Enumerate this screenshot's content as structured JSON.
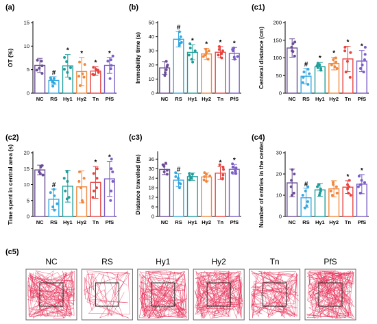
{
  "group_colors": {
    "NC": "#6b4d96",
    "RS": "#36a8e0",
    "Hy1": "#1e9e9a",
    "Hy2": "#f0883e",
    "Tn": "#e8423f",
    "PfS": "#7b5ec6"
  },
  "trace_color": "#e8325a",
  "chart_data": [
    {
      "id": "a",
      "panel_label": "(a)",
      "type": "bar",
      "ylabel": "OT (%)",
      "ylim": [
        0,
        15
      ],
      "yticks": [
        0,
        5,
        10,
        15
      ],
      "yticklabels": [
        "0",
        "5",
        "10",
        "15"
      ],
      "categories": [
        "NC",
        "RS",
        "Hy1",
        "Hy2",
        "Tn",
        "PfS"
      ],
      "values": [
        5.9,
        2.7,
        5.8,
        4.6,
        4.7,
        5.9
      ],
      "errors": [
        1.5,
        0.8,
        2.4,
        3.0,
        0.9,
        1.7
      ],
      "points": [
        [
          6.8,
          4.9,
          5.3,
          5.8,
          7.0,
          4.2
        ],
        [
          2.1,
          1.5,
          2.4,
          3.1,
          2.9,
          3.3
        ],
        [
          4.4,
          6.7,
          5.4,
          7.6,
          3.1,
          5.1
        ],
        [
          1.6,
          6.1,
          4.1,
          3.6,
          6.6,
          3.4
        ],
        [
          4.9,
          5.1,
          4.4,
          3.9,
          5.5,
          4.0
        ],
        [
          5.9,
          3.1,
          7.1,
          7.9,
          5.2,
          6.8
        ]
      ],
      "markers": [
        "",
        "#",
        "*",
        "*",
        "*",
        "*"
      ]
    },
    {
      "id": "b",
      "panel_label": "(b)",
      "type": "bar",
      "ylabel": "Immobility time (s)",
      "ylim": [
        0,
        50
      ],
      "yticks": [
        0,
        10,
        20,
        30,
        40,
        50
      ],
      "yticklabels": [
        "0",
        "10",
        "20",
        "30",
        "40",
        "50"
      ],
      "categories": [
        "NC",
        "RS",
        "Hy1",
        "Hy2",
        "Tn",
        "PfS"
      ],
      "values": [
        17.9,
        38.2,
        28.9,
        27.8,
        29.0,
        28.2
      ],
      "errors": [
        4.5,
        5.5,
        5.3,
        4.0,
        4.0,
        4.2
      ],
      "points": [
        [
          14.5,
          20.0,
          22.5,
          16.5,
          12.5,
          19.0
        ],
        [
          34.0,
          40.0,
          43.5,
          38.0,
          36.0,
          35.5
        ],
        [
          24.0,
          32.0,
          35.0,
          27.0,
          22.0,
          30.0
        ],
        [
          30.0,
          24.0,
          26.0,
          31.0,
          27.0,
          29.0
        ],
        [
          31.0,
          28.0,
          27.0,
          33.0,
          25.0,
          30.0
        ],
        [
          32.0,
          26.0,
          25.5,
          31.0,
          24.0,
          30.0
        ]
      ],
      "markers": [
        "",
        "#",
        "*",
        "*",
        "*",
        "*"
      ]
    },
    {
      "id": "c1",
      "panel_label": "(c1)",
      "type": "bar",
      "ylabel": "Centeral distance (cm)",
      "ylim": [
        0,
        200
      ],
      "yticks": [
        0,
        50,
        100,
        150,
        200
      ],
      "yticklabels": [
        "0",
        "50",
        "100",
        "150",
        "200"
      ],
      "categories": [
        "NC",
        "RS",
        "Hy1",
        "Hy2",
        "Tn",
        "PfS"
      ],
      "values": [
        128,
        48,
        75,
        84,
        97,
        91
      ],
      "errors": [
        26,
        22,
        12,
        18,
        36,
        30
      ],
      "points": [
        [
          105,
          120,
          140,
          130,
          118,
          145
        ],
        [
          30,
          45,
          68,
          55,
          25,
          60
        ],
        [
          65,
          78,
          72,
          80,
          70,
          85
        ],
        [
          70,
          95,
          80,
          88,
          100,
          75
        ],
        [
          60,
          115,
          130,
          90,
          45,
          120
        ],
        [
          60,
          80,
          130,
          110,
          70,
          95
        ]
      ],
      "markers": [
        "",
        "#",
        "*",
        "*",
        "*",
        "*"
      ]
    },
    {
      "id": "c2",
      "panel_label": "(c2)",
      "type": "bar",
      "ylabel": "Time spent in central area (s)",
      "ylim": [
        0,
        20
      ],
      "yticks": [
        0,
        5,
        10,
        15,
        20
      ],
      "yticklabels": [
        "0",
        "5",
        "10",
        "15",
        "20"
      ],
      "categories": [
        "NC",
        "RS",
        "Hy1",
        "Hy2",
        "Tn",
        "PfS"
      ],
      "values": [
        14.6,
        5.4,
        9.5,
        9.3,
        10.7,
        11.8
      ],
      "errors": [
        1.5,
        3.2,
        5.0,
        5.0,
        5.0,
        5.5
      ],
      "points": [
        [
          13.5,
          15.5,
          16.0,
          14.0,
          13.0,
          15.8
        ],
        [
          3.0,
          7.5,
          8.5,
          4.0,
          2.0,
          6.5
        ],
        [
          5.5,
          14.0,
          8.0,
          12.0,
          6.0,
          11.0
        ],
        [
          5.0,
          14.0,
          9.0,
          12.0,
          4.5,
          11.0
        ],
        [
          6.0,
          15.0,
          12.0,
          9.0,
          13.5,
          8.0
        ],
        [
          5.0,
          8.0,
          14.0,
          15.0,
          18.0,
          11.0
        ]
      ],
      "markers": [
        "",
        "#",
        "",
        "",
        "*",
        "*"
      ]
    },
    {
      "id": "c3",
      "panel_label": "(c3)",
      "type": "bar",
      "ylabel": "Distance travelled (m)",
      "ylim": [
        0,
        40
      ],
      "yticks": [
        0,
        6,
        12,
        18,
        24,
        30,
        36
      ],
      "yticklabels": [
        "0",
        "6",
        "12",
        "18",
        "24",
        "30",
        "36"
      ],
      "categories": [
        "NC",
        "RS",
        "Hy1",
        "Hy2",
        "Tn",
        "PfS"
      ],
      "values": [
        29.5,
        22.8,
        25.0,
        24.8,
        27.2,
        29.6
      ],
      "errors": [
        3.2,
        4.0,
        2.3,
        2.5,
        4.0,
        3.0
      ],
      "points": [
        [
          26.5,
          31.5,
          33.5,
          28.0,
          29.0,
          32.5
        ],
        [
          18.0,
          25.0,
          27.5,
          21.0,
          24.0,
          20.5
        ],
        [
          23.0,
          26.5,
          27.0,
          24.0,
          25.5,
          24.5
        ],
        [
          22.0,
          26.5,
          27.5,
          23.0,
          25.0,
          25.5
        ],
        [
          23.5,
          29.5,
          32.5,
          26.0,
          31.0,
          24.0
        ],
        [
          27.0,
          33.0,
          31.0,
          28.5,
          30.5,
          27.5
        ]
      ],
      "markers": [
        "",
        "#",
        "",
        "",
        "*",
        "*"
      ]
    },
    {
      "id": "c4",
      "panel_label": "(c4)",
      "type": "bar",
      "ylabel": "Number of entries in the center",
      "ylim": [
        0,
        30
      ],
      "yticks": [
        0,
        10,
        20,
        30
      ],
      "yticklabels": [
        "0",
        "10",
        "20",
        "30"
      ],
      "categories": [
        "NC",
        "RS",
        "Hy1",
        "Hy2",
        "Tn",
        "PfS"
      ],
      "values": [
        15.8,
        8.8,
        12.5,
        13.0,
        13.8,
        15.2
      ],
      "errors": [
        6.5,
        4.5,
        3.0,
        3.8,
        3.0,
        4.5
      ],
      "points": [
        [
          10,
          17,
          22,
          11,
          14,
          20
        ],
        [
          4,
          12,
          5,
          10,
          7,
          14
        ],
        [
          11,
          14,
          12,
          15,
          10,
          13
        ],
        [
          12,
          16,
          14,
          10,
          15,
          11
        ],
        [
          10,
          14,
          17,
          11,
          15,
          13
        ],
        [
          11,
          16,
          19,
          14,
          15,
          17
        ]
      ],
      "markers": [
        "",
        "#",
        "",
        "",
        "*",
        "*"
      ]
    }
  ],
  "traces": {
    "panel_label": "(c5)",
    "titles": [
      "NC",
      "RS",
      "Hy1",
      "Hy2",
      "Tn",
      "PfS"
    ],
    "path_counts": [
      150,
      45,
      160,
      175,
      130,
      190
    ]
  }
}
